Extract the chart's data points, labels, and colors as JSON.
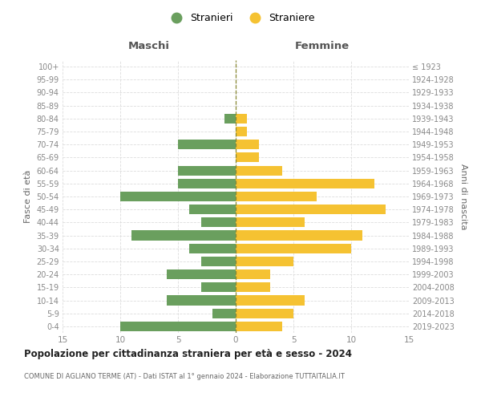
{
  "age_groups": [
    "0-4",
    "5-9",
    "10-14",
    "15-19",
    "20-24",
    "25-29",
    "30-34",
    "35-39",
    "40-44",
    "45-49",
    "50-54",
    "55-59",
    "60-64",
    "65-69",
    "70-74",
    "75-79",
    "80-84",
    "85-89",
    "90-94",
    "95-99",
    "100+"
  ],
  "birth_years": [
    "2019-2023",
    "2014-2018",
    "2009-2013",
    "2004-2008",
    "1999-2003",
    "1994-1998",
    "1989-1993",
    "1984-1988",
    "1979-1983",
    "1974-1978",
    "1969-1973",
    "1964-1968",
    "1959-1963",
    "1954-1958",
    "1949-1953",
    "1944-1948",
    "1939-1943",
    "1934-1938",
    "1929-1933",
    "1924-1928",
    "≤ 1923"
  ],
  "maschi": [
    10,
    2,
    6,
    3,
    6,
    3,
    4,
    9,
    3,
    4,
    10,
    5,
    5,
    0,
    5,
    0,
    1,
    0,
    0,
    0,
    0
  ],
  "femmine": [
    4,
    5,
    6,
    3,
    3,
    5,
    10,
    11,
    6,
    13,
    7,
    12,
    4,
    2,
    2,
    1,
    1,
    0,
    0,
    0,
    0
  ],
  "color_maschi": "#6a9f5e",
  "color_femmine": "#f5c232",
  "title": "Popolazione per cittadinanza straniera per età e sesso - 2024",
  "subtitle": "COMUNE DI AGLIANO TERME (AT) - Dati ISTAT al 1° gennaio 2024 - Elaborazione TUTTAITALIA.IT",
  "xlabel_left": "Maschi",
  "xlabel_right": "Femmine",
  "ylabel_left": "Fasce di età",
  "ylabel_right": "Anni di nascita",
  "legend_maschi": "Stranieri",
  "legend_femmine": "Straniere",
  "xlim": 15,
  "background_color": "#ffffff",
  "grid_color": "#dddddd"
}
